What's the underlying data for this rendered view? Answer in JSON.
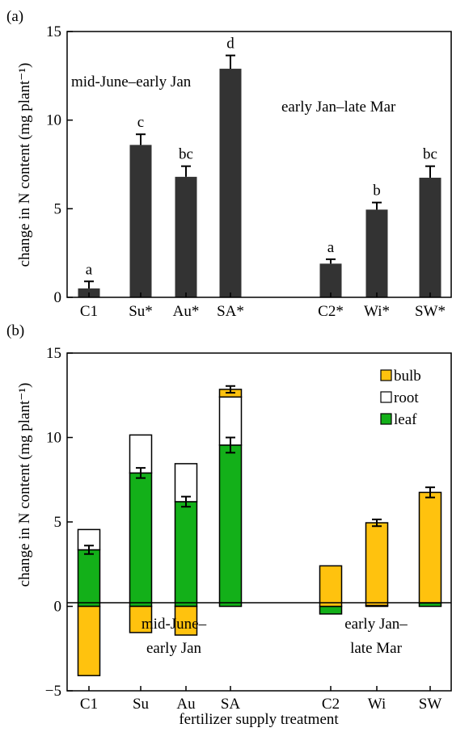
{
  "chart_data": [
    {
      "type": "bar",
      "panel_label": "(a)",
      "ylabel": "change in N content (mg plant⁻¹)",
      "ylim": [
        0,
        15
      ],
      "yticks": [
        0,
        5,
        10,
        15
      ],
      "categories": [
        "C1",
        "Su*",
        "Au*",
        "SA*",
        "C2*",
        "Wi*",
        "SW*"
      ],
      "values": [
        0.5,
        8.6,
        6.8,
        12.9,
        1.9,
        4.95,
        6.75
      ],
      "errors": [
        0.4,
        0.6,
        0.6,
        0.75,
        0.25,
        0.4,
        0.65
      ],
      "significance": [
        "a",
        "c",
        "bc",
        "d",
        "a",
        "b",
        "bc"
      ],
      "bar_color": "#333333",
      "annotations": [
        "mid-June–early Jan",
        "early Jan–late Mar"
      ],
      "grid": false
    },
    {
      "type": "bar",
      "stacked": true,
      "panel_label": "(b)",
      "ylabel": "change in N content (mg plant⁻¹)",
      "xlabel": "fertilizer supply treatment",
      "ylim": [
        -5,
        15
      ],
      "yticks": [
        -5,
        0,
        5,
        10,
        15
      ],
      "categories": [
        "C1",
        "Su",
        "Au",
        "SA",
        "C2",
        "Wi",
        "SW"
      ],
      "series": [
        {
          "name": "leaf",
          "color": "#13b019",
          "values": [
            3.35,
            7.9,
            6.2,
            9.55,
            -0.45,
            0.05,
            0.2
          ]
        },
        {
          "name": "root",
          "color": "#ffffff",
          "values": [
            1.2,
            2.25,
            2.25,
            2.85,
            0.0,
            0.0,
            0.0
          ]
        },
        {
          "name": "bulb",
          "color": "#ffc20e",
          "values": [
            -4.1,
            -1.55,
            -1.7,
            0.45,
            2.4,
            4.9,
            6.55
          ]
        }
      ],
      "leaf_errors": [
        0.25,
        0.3,
        0.3,
        0.45
      ],
      "total_errors": {
        "SA": 0.2,
        "Wi": 0.2,
        "SW": 0.3
      },
      "legend": [
        "bulb",
        "root",
        "leaf"
      ],
      "legend_position": "top-right",
      "annotations": [
        [
          "mid-June–",
          "early Jan"
        ],
        [
          "early Jan–",
          "late Mar"
        ]
      ],
      "grid": false
    }
  ]
}
